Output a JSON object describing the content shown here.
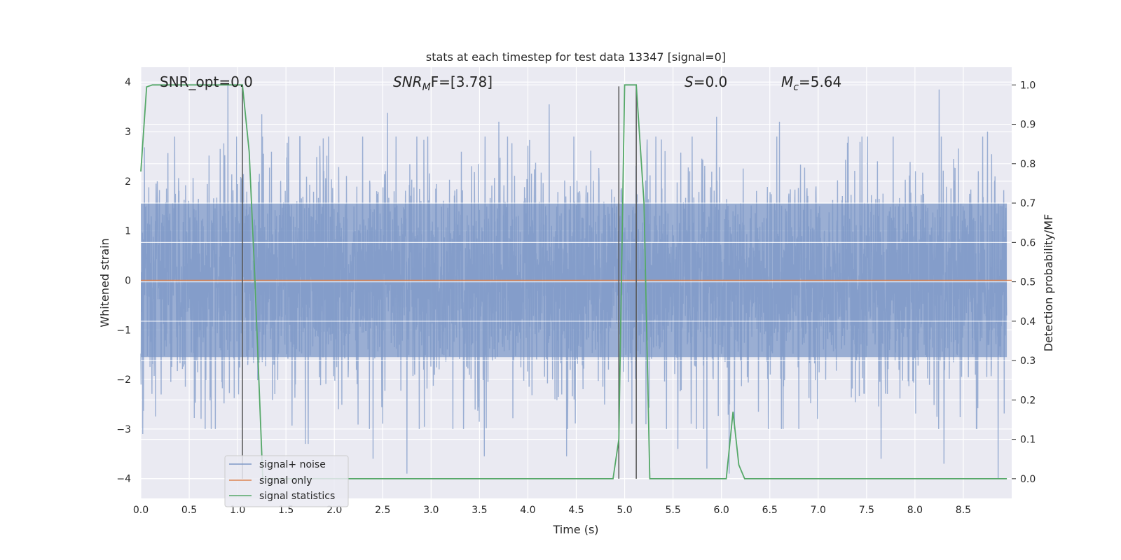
{
  "chart_data": {
    "type": "line",
    "title": "stats at each timestep for test data 13347 [signal=0]",
    "xlabel": "Time (s)",
    "ylabel": "Whitened strain",
    "ylabel_right": "Detection probability/MF",
    "xlim": [
      0.0,
      9.0
    ],
    "ylim": [
      -4.4,
      4.3
    ],
    "ylim_right": [
      -0.05,
      1.045
    ],
    "x_ticks": [
      "0.0",
      "0.5",
      "1.0",
      "1.5",
      "2.0",
      "2.5",
      "3.0",
      "3.5",
      "4.0",
      "4.5",
      "5.0",
      "5.5",
      "6.0",
      "6.5",
      "7.0",
      "7.5",
      "8.0",
      "8.5"
    ],
    "y_ticks": [
      "4",
      "3",
      "2",
      "1",
      "0",
      "−1",
      "−2",
      "−3",
      "−4"
    ],
    "y_right_ticks": [
      "1.0",
      "0.9",
      "0.8",
      "0.7",
      "0.6",
      "0.5",
      "0.4",
      "0.3",
      "0.2",
      "0.1",
      "0.0"
    ],
    "grid": true,
    "legend_position": "lower-left",
    "annotations": {
      "snr_opt": "SNR_opt=0.0",
      "snr_mf_prefix": "SNR",
      "snr_mf_sub": "M",
      "snr_mf_suffix": "F=[3.78]",
      "s_label": "S",
      "s_value": "=0.0",
      "mc_label": "M",
      "mc_sub": "c",
      "mc_value": "=5.64"
    },
    "vertical_markers_x": [
      1.05,
      4.94,
      5.12
    ],
    "series": [
      {
        "name": "signal+ noise",
        "color": "#7c97c6",
        "kind": "noise",
        "sample_rate": 400,
        "core_amplitude": 1.55,
        "peaks": [
          {
            "x": 0.9,
            "y": 3.95
          },
          {
            "x": 0.35,
            "y": 2.9
          },
          {
            "x": 1.25,
            "y": 3.35
          },
          {
            "x": 2.55,
            "y": 3.38
          },
          {
            "x": 3.7,
            "y": 3.2
          },
          {
            "x": 4.22,
            "y": 3.55
          },
          {
            "x": 5.95,
            "y": 3.3
          },
          {
            "x": 6.6,
            "y": 3.2
          },
          {
            "x": 8.25,
            "y": 3.85
          },
          {
            "x": 8.75,
            "y": 3.0
          },
          {
            "x": 0.02,
            "y": -3.1
          },
          {
            "x": 1.7,
            "y": -3.3
          },
          {
            "x": 1.73,
            "y": -3.3
          },
          {
            "x": 2.4,
            "y": -3.6
          },
          {
            "x": 2.75,
            "y": -3.9
          },
          {
            "x": 3.55,
            "y": -3.55
          },
          {
            "x": 4.4,
            "y": -3.55
          },
          {
            "x": 5.55,
            "y": -3.4
          },
          {
            "x": 5.85,
            "y": -3.8
          },
          {
            "x": 6.08,
            "y": -3.9
          },
          {
            "x": 7.65,
            "y": -3.6
          },
          {
            "x": 8.3,
            "y": -3.7
          },
          {
            "x": 8.86,
            "y": -4.0
          }
        ]
      },
      {
        "name": "signal only",
        "color": "#dd8452",
        "x": [
          0.0,
          9.0
        ],
        "y": [
          0.0,
          0.0
        ]
      },
      {
        "name": "signal statistics",
        "color": "#55a868",
        "axis": "right",
        "x": [
          0.0,
          0.06,
          0.12,
          0.2,
          1.0,
          1.05,
          1.12,
          1.18,
          1.26,
          4.88,
          4.94,
          5.0,
          5.12,
          5.2,
          5.26,
          6.05,
          6.12,
          6.18,
          6.24,
          6.9,
          8.95
        ],
        "y": [
          0.78,
          0.995,
          1.0,
          1.0,
          1.0,
          1.0,
          0.83,
          0.5,
          0.0,
          0.0,
          0.1,
          1.0,
          1.0,
          0.7,
          0.0,
          0.0,
          0.17,
          0.035,
          0.0,
          0.0,
          0.0
        ]
      }
    ]
  }
}
